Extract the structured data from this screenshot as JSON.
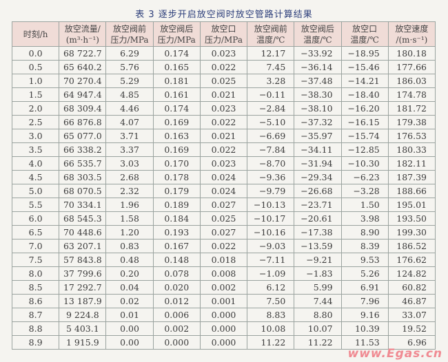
{
  "title": "表 3    逐步开启放空阀时放空管路计算结果",
  "headers": [
    [
      "时刻/h",
      ""
    ],
    [
      "放空流量/",
      "(m³·h⁻¹)"
    ],
    [
      "放空阀前",
      "压力/MPa"
    ],
    [
      "放空阀后",
      "压力/MPa"
    ],
    [
      "放空口",
      "压力/MPa"
    ],
    [
      "放空阀前",
      "温度/℃"
    ],
    [
      "放空阀后",
      "温度/℃"
    ],
    [
      "放空口",
      "温度/℃"
    ],
    [
      "放空速度",
      "/(m·s⁻¹)"
    ]
  ],
  "rows": [
    [
      "0.0",
      "68 722.7",
      "6.29",
      "0.174",
      "0.023",
      "12.17",
      "−33.92",
      "−18.95",
      "180.18"
    ],
    [
      "0.5",
      "65 640.2",
      "5.76",
      "0.165",
      "0.022",
      "7.45",
      "−36.14",
      "−15.46",
      "177.66"
    ],
    [
      "1.0",
      "70 270.4",
      "5.29",
      "0.181",
      "0.025",
      "3.28",
      "−37.48",
      "−14.21",
      "186.03"
    ],
    [
      "1.5",
      "64 947.4",
      "4.85",
      "0.161",
      "0.021",
      "−0.11",
      "−38.30",
      "−18.40",
      "174.78"
    ],
    [
      "2.0",
      "68 309.4",
      "4.46",
      "0.174",
      "0.023",
      "−2.84",
      "−38.10",
      "−16.20",
      "181.72"
    ],
    [
      "2.5",
      "66 876.8",
      "4.07",
      "0.169",
      "0.022",
      "−5.10",
      "−37.32",
      "−16.15",
      "179.38"
    ],
    [
      "3.0",
      "65 077.0",
      "3.71",
      "0.163",
      "0.021",
      "−6.69",
      "−35.97",
      "−15.74",
      "176.53"
    ],
    [
      "3.5",
      "66 338.2",
      "3.37",
      "0.169",
      "0.022",
      "−7.84",
      "−34.11",
      "−12.85",
      "180.33"
    ],
    [
      "4.0",
      "66 535.7",
      "3.03",
      "0.170",
      "0.023",
      "−8.70",
      "−31.94",
      "−10.30",
      "182.11"
    ],
    [
      "4.5",
      "68 303.5",
      "2.68",
      "0.178",
      "0.024",
      "−9.36",
      "−29.34",
      "−6.23",
      "187.39"
    ],
    [
      "5.0",
      "68 070.5",
      "2.32",
      "0.179",
      "0.024",
      "−9.79",
      "−26.68",
      "−3.28",
      "188.66"
    ],
    [
      "5.5",
      "70 334.1",
      "1.96",
      "0.189",
      "0.027",
      "−10.13",
      "−23.71",
      "1.50",
      "195.01"
    ],
    [
      "6.0",
      "68 545.3",
      "1.58",
      "0.184",
      "0.025",
      "−10.17",
      "−20.61",
      "3.98",
      "193.50"
    ],
    [
      "6.5",
      "70 448.6",
      "1.20",
      "0.193",
      "0.027",
      "−10.16",
      "−17.38",
      "8.90",
      "199.30"
    ],
    [
      "7.0",
      "63 207.1",
      "0.83",
      "0.167",
      "0.022",
      "−9.03",
      "−13.59",
      "8.39",
      "186.52"
    ],
    [
      "7.5",
      "57 843.8",
      "0.48",
      "0.148",
      "0.018",
      "−7.11",
      "−9.21",
      "9.53",
      "176.62"
    ],
    [
      "8.0",
      "37 799.6",
      "0.20",
      "0.078",
      "0.008",
      "−1.09",
      "−1.83",
      "5.26",
      "124.82"
    ],
    [
      "8.5",
      "17 292.7",
      "0.04",
      "0.020",
      "0.002",
      "6.12",
      "5.99",
      "6.91",
      "60.82"
    ],
    [
      "8.6",
      "13 187.9",
      "0.02",
      "0.012",
      "0.001",
      "7.50",
      "7.44",
      "7.96",
      "46.87"
    ],
    [
      "8.7",
      "9 224.8",
      "0.01",
      "0.006",
      "0.000",
      "8.83",
      "8.80",
      "9.16",
      "33.07"
    ],
    [
      "8.8",
      "5 403.1",
      "0.00",
      "0.002",
      "0.000",
      "10.08",
      "10.07",
      "10.39",
      "19.52"
    ],
    [
      "8.9",
      "1 915.9",
      "0.00",
      "0.000",
      "0.000",
      "11.22",
      "11.22",
      "11.53",
      "6.96"
    ]
  ],
  "watermark": "www.Egas.cn"
}
